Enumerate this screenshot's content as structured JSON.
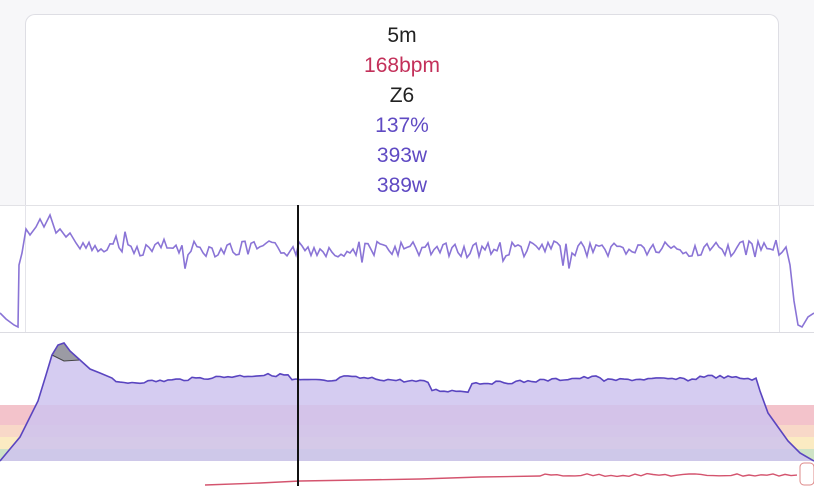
{
  "tooltip": {
    "duration": "5m",
    "heart_rate": "168bpm",
    "zone": "Z6",
    "ftp_percent": "137%",
    "power": "393w",
    "normalized_power": "389w"
  },
  "colors": {
    "power_line": "#8a74d6",
    "power_fill": "#cec3ef",
    "heart_rate": "#d4546e",
    "cursor": "#111111",
    "zone_red": "#f3c3cb",
    "zone_orange": "#f8d8c8",
    "zone_yellow": "#fbebc2",
    "zone_green": "#cfe3c6"
  },
  "chart_data": {
    "type": "line",
    "cursor_label": "5m"
  }
}
